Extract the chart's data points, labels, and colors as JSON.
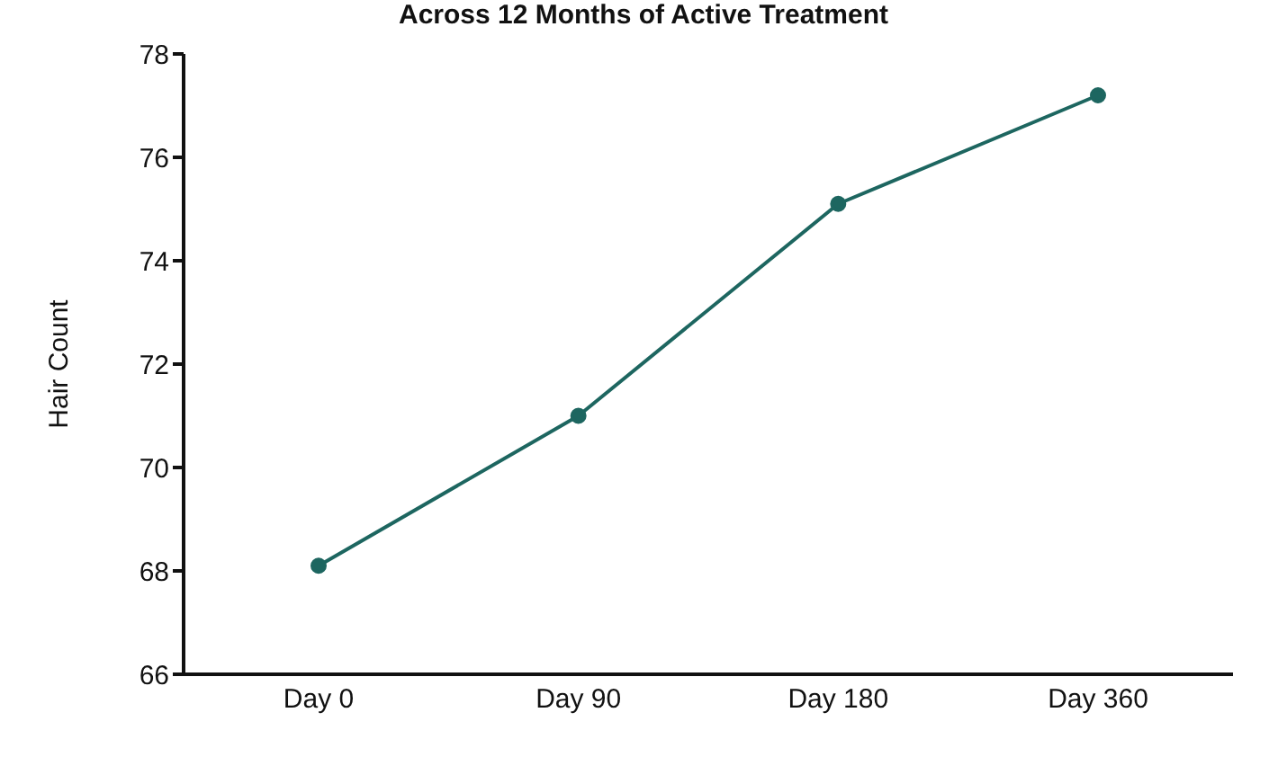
{
  "chart_data": {
    "type": "line",
    "title": "Across 12 Months of Active Treatment",
    "ylabel": "Hair Count",
    "categories": [
      "Day 0",
      "Day 90",
      "Day 180",
      "Day 360"
    ],
    "series": [
      {
        "color": "#1d6660",
        "values": [
          68.1,
          71,
          75.1,
          77.2
        ]
      }
    ],
    "ylim": [
      66,
      78
    ],
    "yticks": [
      66,
      68,
      70,
      72,
      74,
      76,
      78
    ],
    "grid": false,
    "legend": false,
    "marker": "circle",
    "line_style": "solid"
  }
}
